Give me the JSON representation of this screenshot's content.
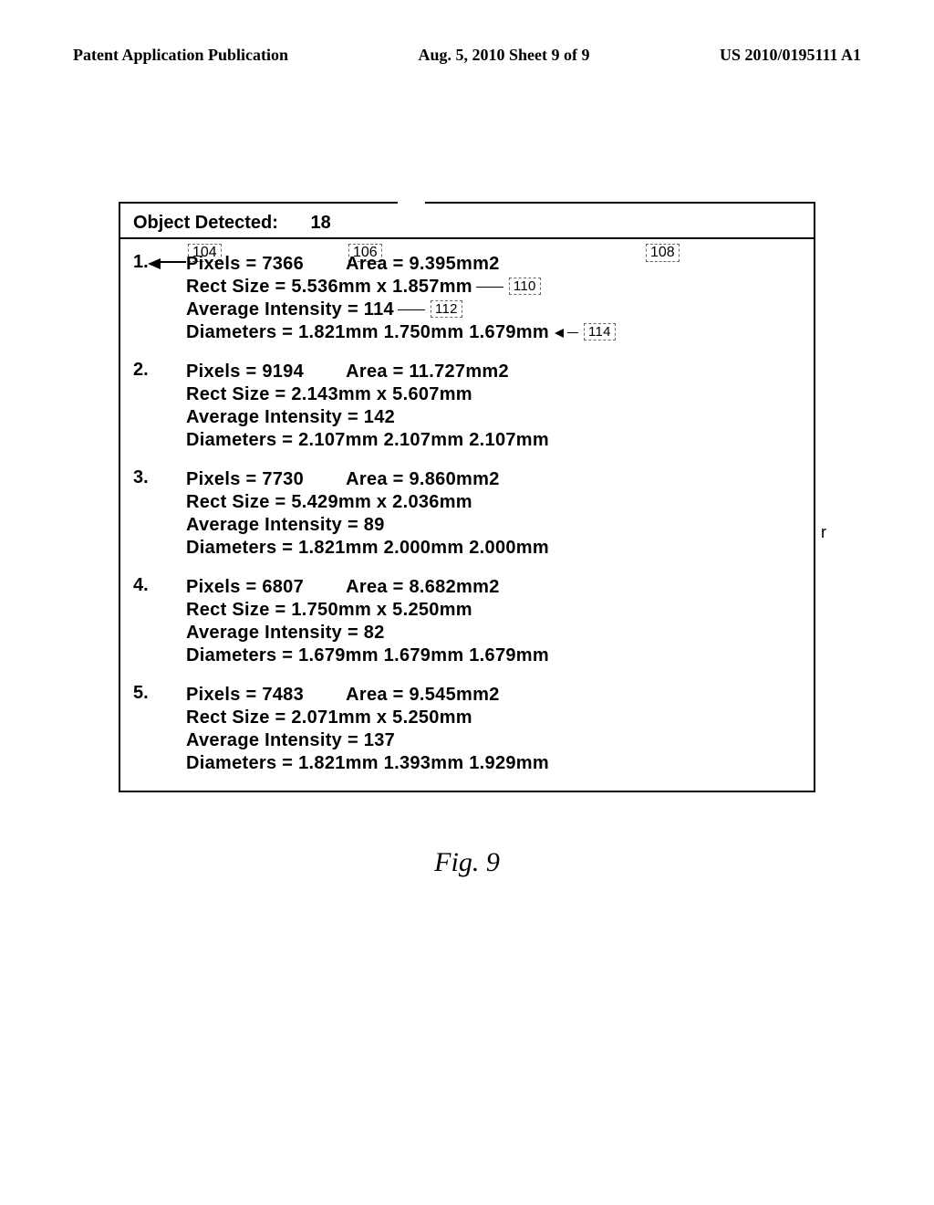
{
  "header": {
    "left": "Patent Application Publication",
    "center": "Aug. 5, 2010  Sheet 9 of 9",
    "right": "US 2010/0195111 A1"
  },
  "figure_label": "Fig. 9",
  "detected": {
    "label": "Object Detected:",
    "count": "18"
  },
  "refs": {
    "r104": "104",
    "r106": "106",
    "r108": "108",
    "r110": "110",
    "r112": "112",
    "r114": "114"
  },
  "rows": [
    {
      "num": "1.",
      "pixels": "Pixels = 7366",
      "area": "Area = 9.395mm2",
      "rect": "Rect Size = 5.536mm x 1.857mm",
      "avg": "Average Intensity = 114",
      "dia": "Diameters = 1.821mm   1.750mm   1.679mm",
      "show110": true,
      "show112": true,
      "show114": true
    },
    {
      "num": "2.",
      "pixels": "Pixels = 9194",
      "area": "Area = 11.727mm2",
      "rect": "Rect Size = 2.143mm x 5.607mm",
      "avg": "Average Intensity = 142",
      "dia": "Diameters = 2.107mm   2.107mm   2.107mm"
    },
    {
      "num": "3.",
      "pixels": "Pixels = 7730",
      "area": "Area = 9.860mm2",
      "rect": "Rect Size = 5.429mm x 2.036mm",
      "avg": "Average Intensity = 89",
      "dia": "Diameters = 1.821mm   2.000mm   2.000mm"
    },
    {
      "num": "4.",
      "pixels": "Pixels = 6807",
      "area": "Area = 8.682mm2",
      "rect": "Rect Size = 1.750mm x 5.250mm",
      "avg": "Average Intensity = 82",
      "dia": "Diameters = 1.679mm   1.679mm   1.679mm"
    },
    {
      "num": "5.",
      "pixels": "Pixels = 7483",
      "area": "Area = 9.545mm2",
      "rect": "Rect Size = 2.071mm x 5.250mm",
      "avg": "Average Intensity = 137",
      "dia": "Diameters = 1.821mm   1.393mm   1.929mm"
    }
  ]
}
